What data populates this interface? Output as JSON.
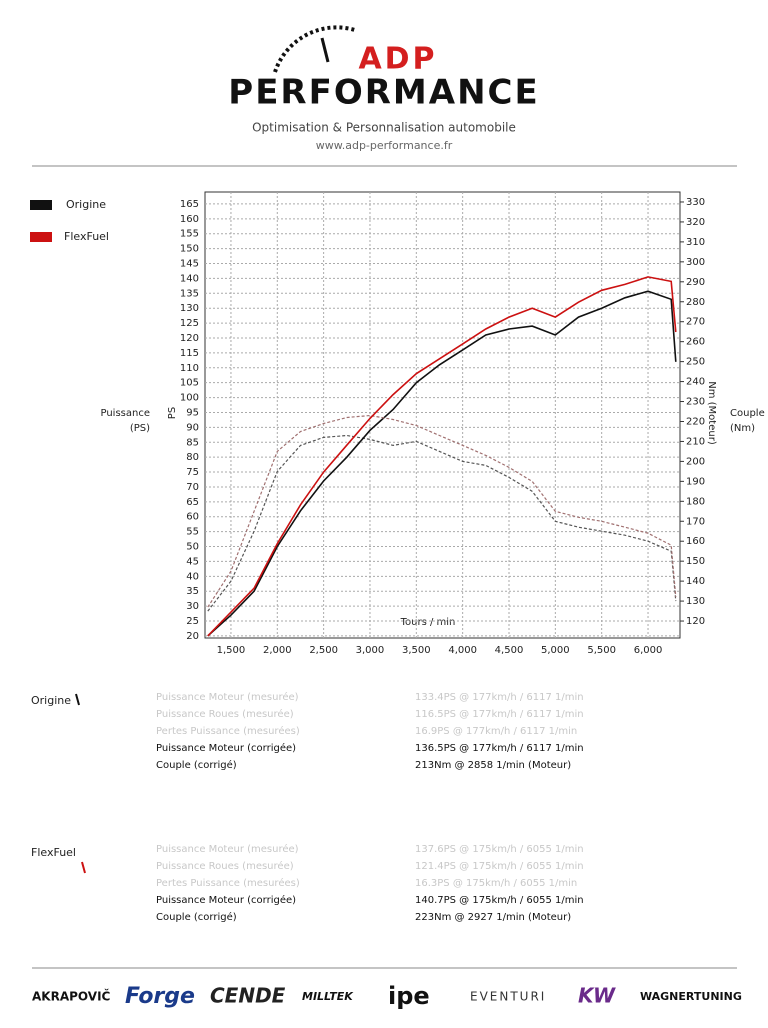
{
  "header": {
    "brand": "ADP",
    "title": "PERFORMANCE",
    "tagline": "Optimisation & Personnalisation automobile",
    "website": "www.adp-performance.fr"
  },
  "chart_data": {
    "type": "line",
    "x_label": "Tours / min",
    "y_label": "PS",
    "y_title": [
      "Puissance",
      "(PS)"
    ],
    "y2_label": "Nm (Moteur)",
    "y2_title": [
      "Couple",
      "(Nm)"
    ],
    "x": [
      1250,
      1500,
      1750,
      2000,
      2250,
      2500,
      2750,
      3000,
      3250,
      3500,
      3750,
      4000,
      4250,
      4500,
      4750,
      5000,
      5250,
      5500,
      5750,
      6000,
      6250,
      6300
    ],
    "series": [
      {
        "name": "Origine",
        "color": "#111111",
        "torque_color": "#555555",
        "values": [
          20,
          27,
          35,
          50,
          62,
          72,
          80,
          89,
          96,
          105,
          111,
          116,
          121,
          123,
          124,
          121,
          127,
          130,
          133.5,
          135.7,
          133,
          112
        ],
        "torque": [
          125,
          140,
          165,
          195,
          208,
          212,
          213,
          211,
          208,
          210,
          205,
          200,
          198,
          192,
          185,
          170,
          167,
          165,
          163,
          160,
          155,
          130
        ]
      },
      {
        "name": "FlexFuel",
        "color": "#cc1111",
        "torque_color": "#a07070",
        "values": [
          20,
          28,
          36,
          51,
          64,
          75,
          84,
          93,
          101,
          108,
          113,
          118,
          123,
          127,
          130,
          127,
          132,
          136,
          138,
          140.5,
          139,
          122
        ],
        "torque": [
          127,
          145,
          175,
          205,
          215,
          219,
          222,
          223,
          221,
          218,
          213,
          208,
          203,
          197,
          190,
          175,
          172,
          170,
          167,
          164,
          158,
          132
        ]
      }
    ],
    "xlim": [
      1220,
      6345
    ],
    "ylim": [
      19.3,
      169
    ],
    "y2lim": [
      111.5,
      335
    ],
    "xticks": [
      {
        "value": 1500,
        "label": "1,500"
      },
      {
        "value": 2000,
        "label": "2,000"
      },
      {
        "value": 2500,
        "label": "2,500"
      },
      {
        "value": 3000,
        "label": "3,000"
      },
      {
        "value": 3500,
        "label": "3,500"
      },
      {
        "value": 4000,
        "label": "4,000"
      },
      {
        "value": 4500,
        "label": "4,500"
      },
      {
        "value": 5000,
        "label": "5,000"
      },
      {
        "value": 5500,
        "label": "5,500"
      },
      {
        "value": 6000,
        "label": "6,000"
      }
    ],
    "yticks": [
      20,
      25,
      30,
      35,
      40,
      45,
      50,
      55,
      60,
      65,
      70,
      75,
      80,
      85,
      90,
      95,
      100,
      105,
      110,
      115,
      120,
      125,
      130,
      135,
      140,
      145,
      150,
      155,
      160,
      165
    ],
    "y2ticks": [
      120,
      130,
      140,
      150,
      160,
      170,
      180,
      190,
      200,
      210,
      220,
      230,
      240,
      250,
      260,
      270,
      280,
      290,
      300,
      310,
      320,
      330
    ],
    "grid": true
  },
  "results": [
    {
      "label": "Origine",
      "rows": [
        [
          "Puissance Moteur (mesurée)",
          "133.4PS @ 177km/h / 6117 1/min"
        ],
        [
          "Puissance Roues (mesurée)",
          "116.5PS @ 177km/h / 6117 1/min"
        ],
        [
          "Pertes Puissance (mesurées)",
          "16.9PS @ 177km/h / 6117 1/min"
        ],
        [
          "Puissance Moteur (corrigée)",
          "136.5PS @ 177km/h / 6117 1/min"
        ],
        [
          "Couple (corrigé)",
          "213Nm @ 2858 1/min (Moteur)"
        ]
      ]
    },
    {
      "label": "FlexFuel",
      "rows": [
        [
          "Puissance Moteur (mesurée)",
          "137.6PS @ 175km/h / 6055 1/min"
        ],
        [
          "Puissance Roues (mesurée)",
          "121.4PS @ 175km/h / 6055 1/min"
        ],
        [
          "Pertes Puissance (mesurées)",
          "16.3PS @ 175km/h / 6055 1/min"
        ],
        [
          "Puissance Moteur (corrigée)",
          "140.7PS @ 175km/h / 6055 1/min"
        ],
        [
          "Couple (corrigé)",
          "223Nm @ 2927 1/min (Moteur)"
        ]
      ]
    }
  ],
  "partners": [
    "AKRAPOVIČ",
    "Forge",
    "CENDE",
    "MILLTEK",
    "ipe",
    "EVENTURI",
    "KW",
    "WAGNERTUNING"
  ]
}
